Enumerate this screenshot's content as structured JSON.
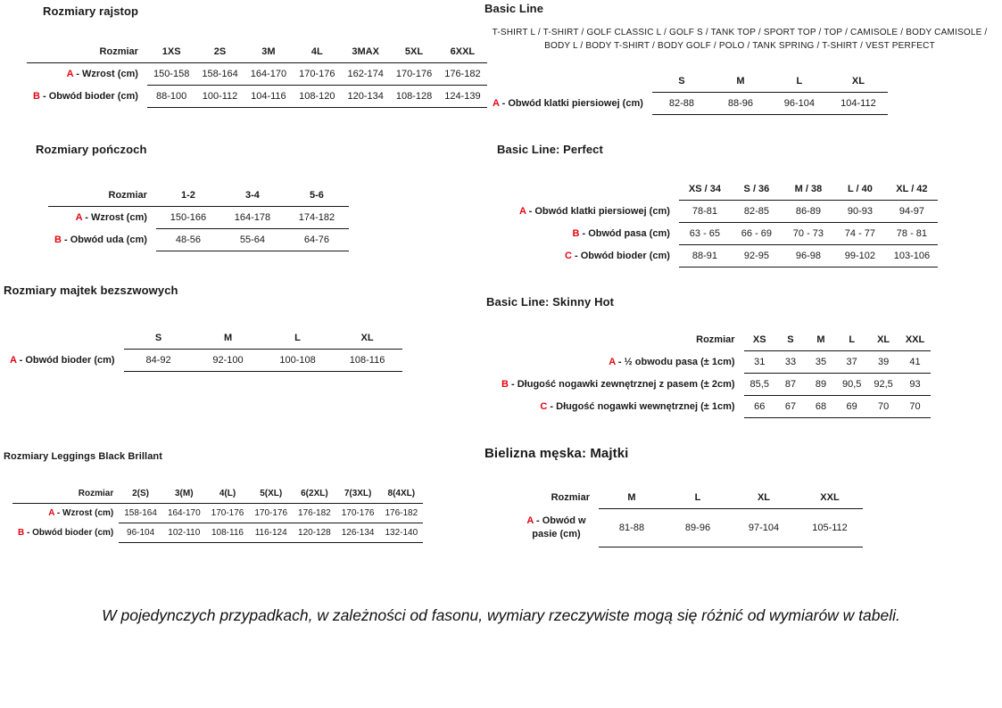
{
  "colors": {
    "accent_red": "#e30613",
    "text": "#1a1a1a",
    "line": "#161616"
  },
  "footnote": "W pojedynczych przypadkach, w zależności od fasonu, wymiary rzeczywiste mogą się różnić od wymiarów w tabeli.",
  "tables": [
    {
      "title": "Rozmiary rajstop",
      "corner": "Rozmiar",
      "columns": [
        "1XS",
        "2S",
        "3M",
        "4L",
        "3MAX",
        "5XL",
        "6XXL"
      ],
      "rows": [
        {
          "letter": "A",
          "label": "Wzrost (cm)",
          "values": [
            "150-158",
            "158-164",
            "164-170",
            "170-176",
            "162-174",
            "170-176",
            "176-182"
          ]
        },
        {
          "letter": "B",
          "label": "Obwód bioder (cm)",
          "values": [
            "88-100",
            "100-112",
            "104-116",
            "108-120",
            "120-134",
            "108-128",
            "124-139"
          ]
        }
      ]
    },
    {
      "title": "Rozmiary pończoch",
      "corner": "Rozmiar",
      "columns": [
        "1-2",
        "3-4",
        "5-6"
      ],
      "rows": [
        {
          "letter": "A",
          "label": "Wzrost (cm)",
          "values": [
            "150-166",
            "164-178",
            "174-182"
          ]
        },
        {
          "letter": "B",
          "label": "Obwód uda (cm)",
          "values": [
            "48-56",
            "55-64",
            "64-76"
          ]
        }
      ]
    },
    {
      "title": "Rozmiary majtek bezszwowych",
      "corner": null,
      "columns": [
        "S",
        "M",
        "L",
        "XL"
      ],
      "rows": [
        {
          "letter": "A",
          "label": "Obwód bioder (cm)",
          "values": [
            "84-92",
            "92-100",
            "100-108",
            "108-116"
          ]
        }
      ]
    },
    {
      "title": "Rozmiary Leggings Black Brillant",
      "corner": "Rozmiar",
      "columns": [
        "2(S)",
        "3(M)",
        "4(L)",
        "5(XL)",
        "6(2XL)",
        "7(3XL)",
        "8(4XL)"
      ],
      "rows": [
        {
          "letter": "A",
          "label": "Wzrost (cm)",
          "values": [
            "158-164",
            "164-170",
            "170-176",
            "170-176",
            "176-182",
            "170-176",
            "176-182"
          ]
        },
        {
          "letter": "B",
          "label": "Obwód bioder (cm)",
          "values": [
            "96-104",
            "102-110",
            "108-116",
            "116-124",
            "120-128",
            "126-134",
            "132-140"
          ]
        }
      ]
    },
    {
      "title": "Basic Line",
      "subtitle": "T-SHIRT L / T-SHIRT / GOLF CLASSIC L / GOLF S / TANK TOP / SPORT TOP / TOP / CAMISOLE / BODY CAMISOLE / BODY L / BODY T-SHIRT / BODY GOLF / POLO / TANK SPRING / T-SHIRT / VEST PERFECT",
      "corner": null,
      "columns": [
        "S",
        "M",
        "L",
        "XL"
      ],
      "rows": [
        {
          "letter": "A",
          "label": "Obwód klatki piersiowej (cm)",
          "values": [
            "82-88",
            "88-96",
            "96-104",
            "104-112"
          ]
        }
      ]
    },
    {
      "title": "Basic Line: Perfect",
      "corner": null,
      "columns": [
        "XS / 34",
        "S / 36",
        "M / 38",
        "L / 40",
        "XL / 42"
      ],
      "rows": [
        {
          "letter": "A",
          "label": "Obwód klatki piersiowej (cm)",
          "values": [
            "78-81",
            "82-85",
            "86-89",
            "90-93",
            "94-97"
          ]
        },
        {
          "letter": "B",
          "label": "Obwód pasa (cm)",
          "values": [
            "63 - 65",
            "66 - 69",
            "70 - 73",
            "74 - 77",
            "78 - 81"
          ]
        },
        {
          "letter": "C",
          "label": "Obwód bioder (cm)",
          "values": [
            "88-91",
            "92-95",
            "96-98",
            "99-102",
            "103-106"
          ]
        }
      ]
    },
    {
      "title": "Basic Line: Skinny Hot",
      "corner": "Rozmiar",
      "columns": [
        "XS",
        "S",
        "M",
        "L",
        "XL",
        "XXL"
      ],
      "rows": [
        {
          "letter": "A",
          "label": "½ obwodu pasa (± 1cm)",
          "values": [
            "31",
            "33",
            "35",
            "37",
            "39",
            "41"
          ]
        },
        {
          "letter": "B",
          "label": "Długość nogawki zewnętrznej z pasem (± 2cm)",
          "values": [
            "85,5",
            "87",
            "89",
            "90,5",
            "92,5",
            "93"
          ]
        },
        {
          "letter": "C",
          "label": "Długość nogawki wewnętrznej (± 1cm)",
          "values": [
            "66",
            "67",
            "68",
            "69",
            "70",
            "70"
          ]
        }
      ]
    },
    {
      "title": "Bielizna męska: Majtki",
      "corner": "Rozmiar",
      "columns": [
        "M",
        "L",
        "XL",
        "XXL"
      ],
      "rows": [
        {
          "letter": "A",
          "label": "Obwód w pasie (cm)",
          "values": [
            "81-88",
            "89-96",
            "97-104",
            "105-112"
          ]
        }
      ]
    }
  ]
}
